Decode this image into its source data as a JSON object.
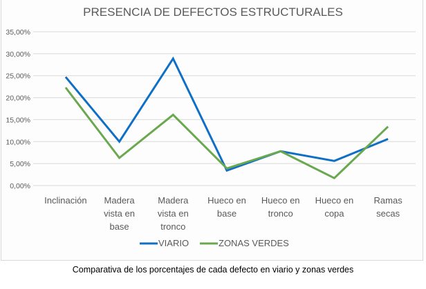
{
  "chart_data": {
    "type": "line",
    "title": "PRESENCIA DE DEFECTOS ESTRUCTURALES",
    "xlabel": "",
    "ylabel": "",
    "ylim": [
      0,
      35
    ],
    "grid": true,
    "legend": "bottom",
    "yticks": [
      "0,00%",
      "5,00%",
      "10,00%",
      "15,00%",
      "20,00%",
      "25,00%",
      "30,00%",
      "35,00%"
    ],
    "categories": [
      [
        "Inclinación"
      ],
      [
        "Madera",
        "vista en",
        "base"
      ],
      [
        "Madera",
        "vista en",
        "tronco"
      ],
      [
        "Hueco en",
        "base"
      ],
      [
        "Hueco en",
        "tronco"
      ],
      [
        "Hueco en",
        "copa"
      ],
      [
        "Ramas",
        "secas"
      ]
    ],
    "series": [
      {
        "name": "VIARIO",
        "color": "#0f6fc6",
        "values": [
          24.7,
          10.0,
          28.9,
          3.4,
          7.8,
          5.6,
          10.6
        ]
      },
      {
        "name": "ZONAS VERDES",
        "color": "#6aa84f",
        "values": [
          22.3,
          6.3,
          16.1,
          3.9,
          7.8,
          1.7,
          13.4
        ]
      }
    ]
  },
  "caption": "Comparativa de los porcentajes de cada defecto en viario y zonas verdes"
}
